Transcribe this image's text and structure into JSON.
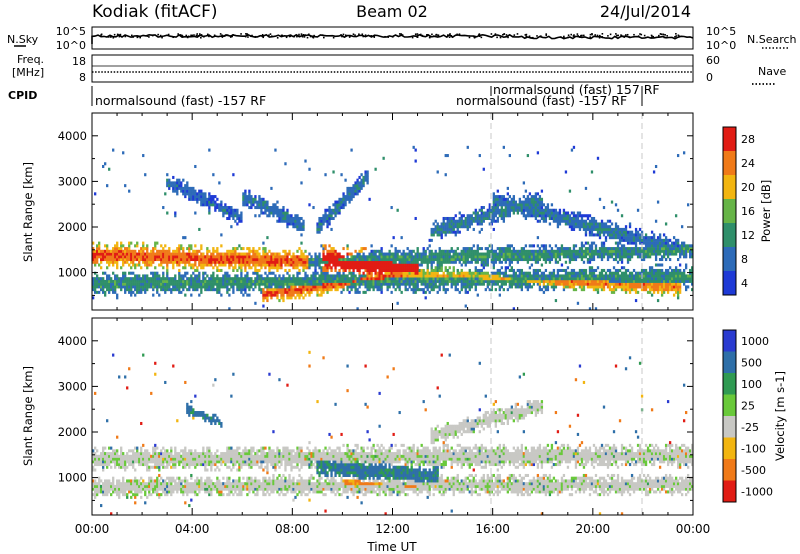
{
  "header": {
    "station": "Kodiak (fitACF)",
    "beam": "Beam 02",
    "date": "24/Jul/2014"
  },
  "top_panel": {
    "left_label": "N.Sky",
    "right_label": "N.Search",
    "left_ticks": [
      "10^5",
      "10^0"
    ],
    "right_ticks": [
      "10^5",
      "10^0"
    ]
  },
  "freq_panel": {
    "left_label_1": "Freq.",
    "left_label_2": "[MHz]",
    "right_label": "Nave",
    "left_ticks": [
      "18",
      "8"
    ],
    "right_ticks": [
      "60",
      "0"
    ]
  },
  "cpid": {
    "label": "CPID",
    "entries": [
      {
        "text": "normalsound (fast) -157 RF"
      },
      {
        "text": "normalsound (fast) 157 RF"
      },
      {
        "text": "normalsound (fast) -157 RF"
      }
    ]
  },
  "chart_data": [
    {
      "type": "heatmap",
      "title": "",
      "xlabel": "",
      "ylabel": "Slant Range [km]",
      "xlim": [
        "00:00",
        "24:00"
      ],
      "ylim": [
        180,
        4500
      ],
      "yticks": [
        1000,
        2000,
        3000,
        4000
      ],
      "colorbar": {
        "label": "Power [dB]",
        "ticks": [
          "4",
          "8",
          "12",
          "16",
          "20",
          "24",
          "28"
        ],
        "colors": [
          "#1e3ad6",
          "#2d6bb8",
          "#2f8f6a",
          "#66b447",
          "#f2b510",
          "#f07a18",
          "#e11c14"
        ]
      },
      "bands": [
        {
          "from_h": 0,
          "to_h": 8.6,
          "r0": 1400,
          "r1": 1250,
          "width": 320,
          "peak_dB": 24
        },
        {
          "from_h": 8.6,
          "to_h": 24,
          "r0": 1250,
          "r1": 1500,
          "width": 250,
          "peak_dB": 10
        },
        {
          "from_h": 0,
          "to_h": 24,
          "r0": 750,
          "r1": 900,
          "width": 300,
          "peak_dB": 10
        },
        {
          "from_h": 6.8,
          "to_h": 12.4,
          "r0": 520,
          "r1": 960,
          "width": 230,
          "peak_dB": 24
        },
        {
          "from_h": 12.4,
          "to_h": 18.5,
          "r0": 960,
          "r1": 820,
          "width": 230,
          "peak_dB": 18
        },
        {
          "from_h": 9.2,
          "to_h": 13.0,
          "r0": 1300,
          "r1": 1050,
          "width": 380,
          "peak_dB": 30
        },
        {
          "from_h": 18.5,
          "to_h": 23.5,
          "r0": 820,
          "r1": 680,
          "width": 220,
          "peak_dB": 22
        },
        {
          "from_h": 13.5,
          "to_h": 18.0,
          "r0": 1900,
          "r1": 2600,
          "width": 260,
          "peak_dB": 8
        },
        {
          "from_h": 16.0,
          "to_h": 23.5,
          "r0": 2600,
          "r1": 1500,
          "width": 260,
          "peak_dB": 7
        },
        {
          "from_h": 6.0,
          "to_h": 8.5,
          "r0": 2700,
          "r1": 2000,
          "width": 230,
          "peak_dB": 7
        },
        {
          "from_h": 9.0,
          "to_h": 11.0,
          "r0": 2000,
          "r1": 3100,
          "width": 230,
          "peak_dB": 7
        },
        {
          "from_h": 3.0,
          "to_h": 6.0,
          "r0": 3000,
          "r1": 2200,
          "width": 200,
          "peak_dB": 6
        }
      ]
    },
    {
      "type": "heatmap",
      "title": "",
      "xlabel": "Time UT",
      "ylabel": "Slant Range [km]",
      "xlim": [
        "00:00",
        "24:00"
      ],
      "xticks": [
        "00:00",
        "04:00",
        "08:00",
        "12:00",
        "16:00",
        "20:00",
        "00:00"
      ],
      "ylim": [
        180,
        4500
      ],
      "yticks": [
        1000,
        2000,
        3000,
        4000
      ],
      "colorbar": {
        "label": "Velocity [m s-1]",
        "ticks": [
          "1000",
          "500",
          "100",
          "25",
          "-25",
          "-100",
          "-500",
          "-1000"
        ],
        "colors": [
          "#2a3bd0",
          "#2e6fa8",
          "#2f9a52",
          "#69c93a",
          "#c8c8c4",
          "#f2b510",
          "#f07a18",
          "#e11c14"
        ]
      },
      "bands": [
        {
          "from_h": 0,
          "to_h": 24,
          "r0": 1400,
          "r1": 1500,
          "width": 320,
          "vel": 0
        },
        {
          "from_h": 0,
          "to_h": 24,
          "r0": 800,
          "r1": 850,
          "width": 280,
          "vel": 0
        },
        {
          "from_h": 9.0,
          "to_h": 13.8,
          "r0": 1300,
          "r1": 1000,
          "width": 350,
          "vel": 150
        },
        {
          "from_h": 10.0,
          "to_h": 13.0,
          "r0": 900,
          "r1": 800,
          "width": 150,
          "vel": -150
        },
        {
          "from_h": 13.5,
          "to_h": 18.0,
          "r0": 1900,
          "r1": 2600,
          "width": 240,
          "vel": 0
        },
        {
          "from_h": 3.8,
          "to_h": 5.2,
          "r0": 2500,
          "r1": 2200,
          "width": 150,
          "vel": 180
        }
      ]
    }
  ]
}
